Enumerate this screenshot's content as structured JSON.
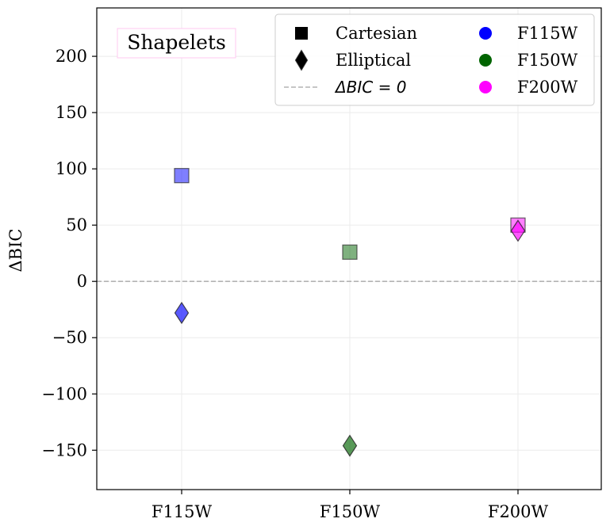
{
  "chart_data": {
    "type": "scatter",
    "title": "",
    "xlabel": "",
    "ylabel": "ΔBIC",
    "annotation": "Shapelets",
    "categories": [
      "F115W",
      "F150W",
      "F200W"
    ],
    "ylim": [
      -185,
      243
    ],
    "yticks": [
      200,
      150,
      100,
      50,
      0,
      -50,
      -100,
      -150
    ],
    "ytick_labels": [
      "200",
      "150",
      "100",
      "50",
      "0",
      "−50",
      "−100",
      "−150"
    ],
    "grid": true,
    "reference_line": {
      "y": 0,
      "label": "ΔBIC = 0",
      "style": "dashed",
      "color": "#b3b3b3"
    },
    "series": [
      {
        "name": "Cartesian",
        "marker": "square",
        "values": [
          94,
          26,
          50
        ]
      },
      {
        "name": "Elliptical",
        "marker": "diamond",
        "values": [
          -28,
          -146,
          45
        ]
      }
    ],
    "filter_colors": {
      "F115W": "#0000ff",
      "F150W": "#006400",
      "F200W": "#ff00ff"
    },
    "legend": {
      "position": "top-right",
      "columns": 2,
      "entries": [
        {
          "label": "Cartesian",
          "kind": "square"
        },
        {
          "label": "Elliptical",
          "kind": "diamond"
        },
        {
          "label": "ΔBIC = 0",
          "kind": "dashed-line"
        },
        {
          "label": "F115W",
          "kind": "circle",
          "color": "#0000ff"
        },
        {
          "label": "F150W",
          "kind": "circle",
          "color": "#006400"
        },
        {
          "label": "F200W",
          "kind": "circle",
          "color": "#ff00ff"
        }
      ]
    }
  }
}
